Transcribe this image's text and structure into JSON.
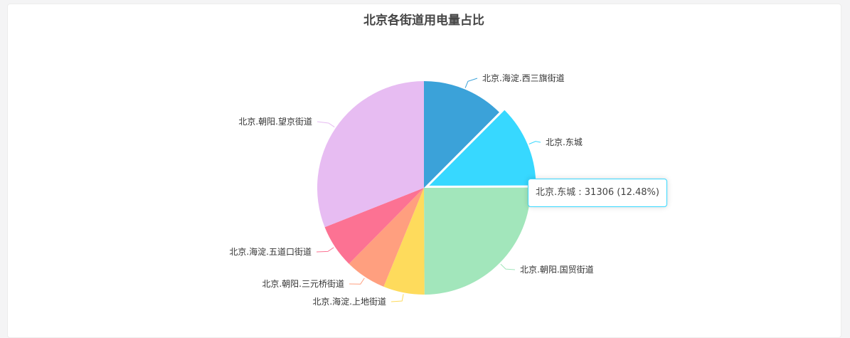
{
  "chart_data": {
    "type": "pie",
    "title": "北京各街道用电量占比",
    "slices": [
      {
        "name": "北京.海淀.西三旗街道",
        "value": 31306,
        "color": "#3ba2d9"
      },
      {
        "name": "北京.东城",
        "value": 31306,
        "color": "#37d8ff"
      },
      {
        "name": "北京.朝阳.国贸街道",
        "value": 62612,
        "color": "#a2e6bb"
      },
      {
        "name": "北京.海淀.上地街道",
        "value": 15653,
        "color": "#fedb5c"
      },
      {
        "name": "北京.朝阳.三元桥街道",
        "value": 15653,
        "color": "#ff9f7f"
      },
      {
        "name": "北京.海淀.五道口街道",
        "value": 16529,
        "color": "#fc7293"
      },
      {
        "name": "北京.朝阳.望京街道",
        "value": 77776,
        "color": "#e7bcf2"
      }
    ],
    "highlighted_index": 1,
    "tooltip": "北京.东城 : 31306 (12.48%)"
  }
}
